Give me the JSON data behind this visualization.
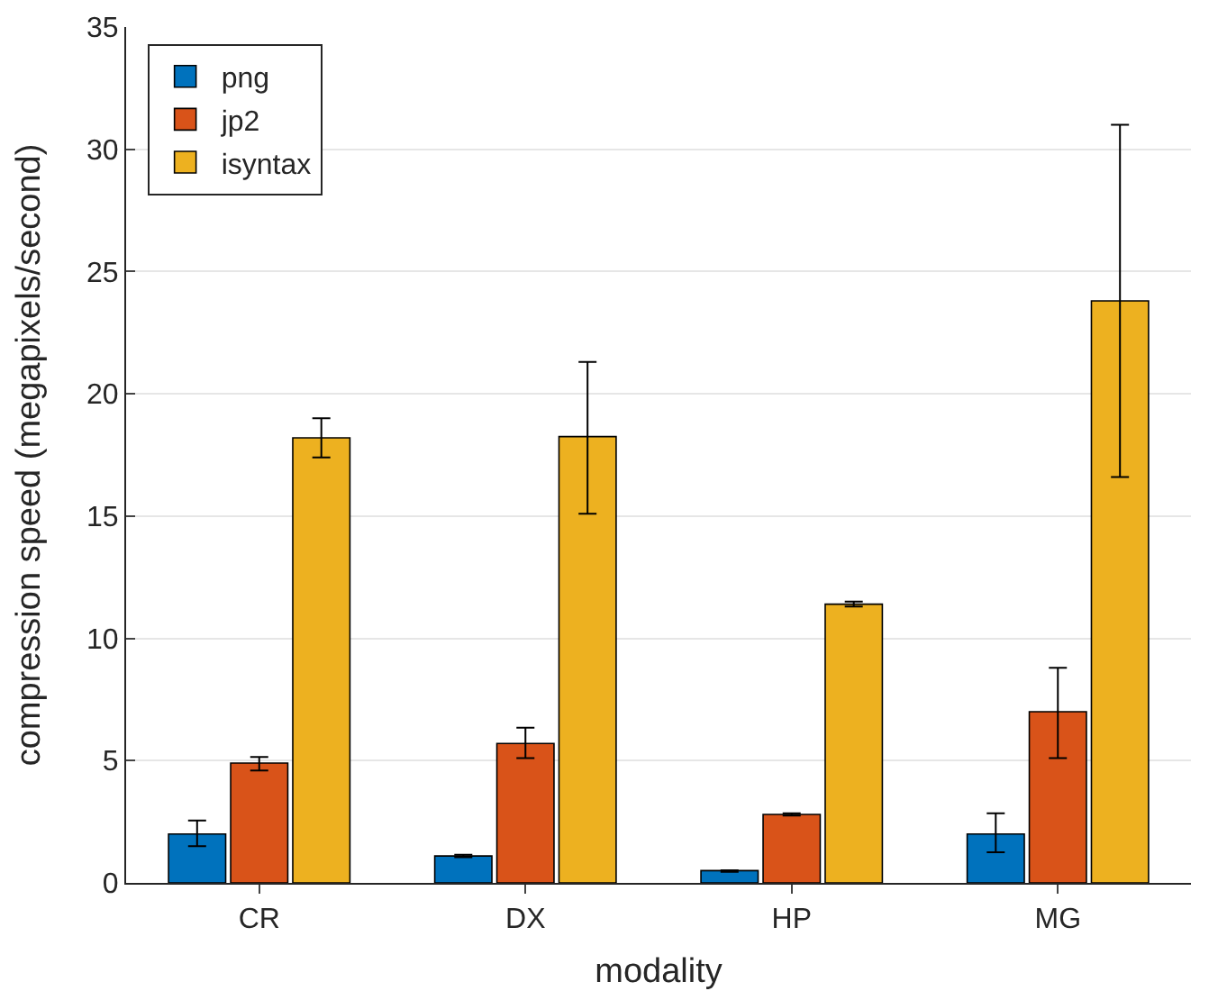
{
  "chart_data": {
    "type": "bar",
    "xlabel": "modality",
    "ylabel": "compression speed (megapixels/second)",
    "categories": [
      "CR",
      "DX",
      "HP",
      "MG"
    ],
    "series": [
      {
        "name": "png",
        "color": "#0072bd",
        "values": [
          2.0,
          1.1,
          0.5,
          2.0
        ],
        "errors": [
          [
            1.5,
            2.55
          ],
          [
            1.05,
            1.15
          ],
          [
            0.45,
            0.52
          ],
          [
            1.25,
            2.85
          ]
        ]
      },
      {
        "name": "jp2",
        "color": "#d95319",
        "values": [
          4.9,
          5.7,
          2.8,
          7.0
        ],
        "errors": [
          [
            4.6,
            5.15
          ],
          [
            5.1,
            6.35
          ],
          [
            2.75,
            2.85
          ],
          [
            5.1,
            8.8
          ]
        ]
      },
      {
        "name": "isyntax",
        "color": "#edb120",
        "values": [
          18.2,
          18.25,
          11.4,
          23.8
        ],
        "errors": [
          [
            17.4,
            19.0
          ],
          [
            15.1,
            21.3
          ],
          [
            11.3,
            11.5
          ],
          [
            16.6,
            31.0
          ]
        ]
      }
    ],
    "ylim": [
      0,
      35
    ],
    "yticks": [
      0,
      5,
      10,
      15,
      20,
      25,
      30,
      35
    ],
    "grid": "y",
    "legend": "top left"
  }
}
